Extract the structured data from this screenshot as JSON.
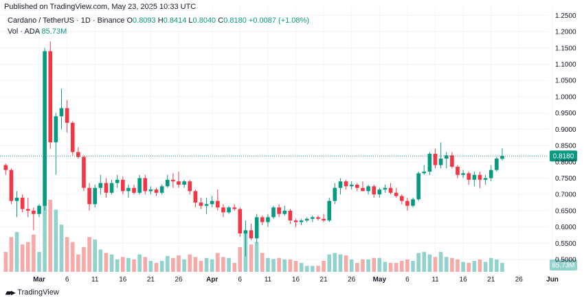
{
  "header": {
    "published": "Published on TradingView.com, May 23, 2025 10:33 UTC"
  },
  "legend": {
    "symbol": "Cardano / TetherUS · 1D · Binance",
    "o_label": "O",
    "o_value": "0.8093",
    "h_label": "H",
    "h_value": "0.8414",
    "l_label": "L",
    "l_value": "0.8040",
    "c_label": "C",
    "c_value": "0.8180",
    "change": "+0.0087 (+1.08%)",
    "vol_label": "Vol · ADA",
    "vol_value": "85.73M"
  },
  "footer": {
    "brand": "TradingView"
  },
  "colors": {
    "up": "#089981",
    "down": "#f23645",
    "up_vol": "#92d2cc",
    "down_vol": "#f7a9a7",
    "grid": "#f0f3fa"
  },
  "chart_data": {
    "type": "candlestick",
    "symbol": "ADA/USDT",
    "interval": "1D",
    "y_ticks": [
      "1.2500",
      "1.2000",
      "1.1500",
      "1.1000",
      "1.0500",
      "1.0000",
      "0.9500",
      "0.9000",
      "0.8500",
      "0.8000",
      "0.7500",
      "0.7000",
      "0.6500",
      "0.6000",
      "0.5500",
      "0.5000"
    ],
    "ylim": [
      0.46,
      1.255
    ],
    "x_ticks": [
      {
        "label": "Mar",
        "date": "2025-03-01",
        "bold": true
      },
      {
        "label": "6",
        "date": "2025-03-06"
      },
      {
        "label": "11",
        "date": "2025-03-11"
      },
      {
        "label": "16",
        "date": "2025-03-16"
      },
      {
        "label": "21",
        "date": "2025-03-21"
      },
      {
        "label": "26",
        "date": "2025-03-26"
      },
      {
        "label": "Apr",
        "date": "2025-04-01",
        "bold": true
      },
      {
        "label": "6",
        "date": "2025-04-06"
      },
      {
        "label": "11",
        "date": "2025-04-11"
      },
      {
        "label": "16",
        "date": "2025-04-16"
      },
      {
        "label": "21",
        "date": "2025-04-21"
      },
      {
        "label": "26",
        "date": "2025-04-26"
      },
      {
        "label": "May",
        "date": "2025-05-01",
        "bold": true
      },
      {
        "label": "6",
        "date": "2025-05-06"
      },
      {
        "label": "11",
        "date": "2025-05-11"
      },
      {
        "label": "16",
        "date": "2025-05-16"
      },
      {
        "label": "21",
        "date": "2025-05-21"
      },
      {
        "label": "26",
        "date": "2025-05-26"
      },
      {
        "label": "Jun",
        "date": "2025-06-01",
        "bold": true
      }
    ],
    "last_price": "0.8180",
    "last_volume": "85.73M",
    "volume_max": 145,
    "candles": [
      {
        "d": "2025-02-23",
        "o": 0.79,
        "h": 0.795,
        "l": 0.76,
        "c": 0.775,
        "v": 40
      },
      {
        "d": "2025-02-24",
        "o": 0.775,
        "h": 0.78,
        "l": 0.67,
        "c": 0.68,
        "v": 70
      },
      {
        "d": "2025-02-25",
        "o": 0.68,
        "h": 0.71,
        "l": 0.63,
        "c": 0.69,
        "v": 80
      },
      {
        "d": "2025-02-26",
        "o": 0.69,
        "h": 0.7,
        "l": 0.645,
        "c": 0.655,
        "v": 55
      },
      {
        "d": "2025-02-27",
        "o": 0.655,
        "h": 0.69,
        "l": 0.63,
        "c": 0.65,
        "v": 60
      },
      {
        "d": "2025-02-28",
        "o": 0.65,
        "h": 0.66,
        "l": 0.59,
        "c": 0.64,
        "v": 75
      },
      {
        "d": "2025-03-01",
        "o": 0.64,
        "h": 0.67,
        "l": 0.63,
        "c": 0.665,
        "v": 40
      },
      {
        "d": "2025-03-02",
        "o": 0.665,
        "h": 1.15,
        "l": 0.65,
        "c": 1.14,
        "v": 140
      },
      {
        "d": "2025-03-03",
        "o": 1.14,
        "h": 1.17,
        "l": 0.84,
        "c": 0.86,
        "v": 145
      },
      {
        "d": "2025-03-04",
        "o": 0.86,
        "h": 0.95,
        "l": 0.76,
        "c": 0.94,
        "v": 125
      },
      {
        "d": "2025-03-05",
        "o": 0.94,
        "h": 1.025,
        "l": 0.9,
        "c": 0.965,
        "v": 95
      },
      {
        "d": "2025-03-06",
        "o": 0.965,
        "h": 0.99,
        "l": 0.89,
        "c": 0.92,
        "v": 70
      },
      {
        "d": "2025-03-07",
        "o": 0.92,
        "h": 0.925,
        "l": 0.82,
        "c": 0.83,
        "v": 60
      },
      {
        "d": "2025-03-08",
        "o": 0.83,
        "h": 0.845,
        "l": 0.81,
        "c": 0.815,
        "v": 35
      },
      {
        "d": "2025-03-09",
        "o": 0.815,
        "h": 0.82,
        "l": 0.71,
        "c": 0.72,
        "v": 50
      },
      {
        "d": "2025-03-10",
        "o": 0.72,
        "h": 0.735,
        "l": 0.65,
        "c": 0.67,
        "v": 70
      },
      {
        "d": "2025-03-11",
        "o": 0.67,
        "h": 0.73,
        "l": 0.66,
        "c": 0.72,
        "v": 65
      },
      {
        "d": "2025-03-12",
        "o": 0.72,
        "h": 0.76,
        "l": 0.7,
        "c": 0.735,
        "v": 45
      },
      {
        "d": "2025-03-13",
        "o": 0.735,
        "h": 0.75,
        "l": 0.69,
        "c": 0.705,
        "v": 38
      },
      {
        "d": "2025-03-14",
        "o": 0.705,
        "h": 0.745,
        "l": 0.7,
        "c": 0.735,
        "v": 35
      },
      {
        "d": "2025-03-15",
        "o": 0.735,
        "h": 0.76,
        "l": 0.72,
        "c": 0.745,
        "v": 25
      },
      {
        "d": "2025-03-16",
        "o": 0.745,
        "h": 0.755,
        "l": 0.7,
        "c": 0.71,
        "v": 30
      },
      {
        "d": "2025-03-17",
        "o": 0.71,
        "h": 0.73,
        "l": 0.69,
        "c": 0.72,
        "v": 28
      },
      {
        "d": "2025-03-18",
        "o": 0.72,
        "h": 0.73,
        "l": 0.7,
        "c": 0.705,
        "v": 25
      },
      {
        "d": "2025-03-19",
        "o": 0.705,
        "h": 0.76,
        "l": 0.7,
        "c": 0.75,
        "v": 35
      },
      {
        "d": "2025-03-20",
        "o": 0.75,
        "h": 0.76,
        "l": 0.7,
        "c": 0.71,
        "v": 30
      },
      {
        "d": "2025-03-21",
        "o": 0.71,
        "h": 0.725,
        "l": 0.7,
        "c": 0.715,
        "v": 22
      },
      {
        "d": "2025-03-22",
        "o": 0.715,
        "h": 0.72,
        "l": 0.695,
        "c": 0.705,
        "v": 18
      },
      {
        "d": "2025-03-23",
        "o": 0.705,
        "h": 0.73,
        "l": 0.7,
        "c": 0.725,
        "v": 22
      },
      {
        "d": "2025-03-24",
        "o": 0.725,
        "h": 0.76,
        "l": 0.72,
        "c": 0.745,
        "v": 32
      },
      {
        "d": "2025-03-25",
        "o": 0.745,
        "h": 0.765,
        "l": 0.72,
        "c": 0.74,
        "v": 28
      },
      {
        "d": "2025-03-26",
        "o": 0.74,
        "h": 0.77,
        "l": 0.72,
        "c": 0.73,
        "v": 33
      },
      {
        "d": "2025-03-27",
        "o": 0.73,
        "h": 0.745,
        "l": 0.72,
        "c": 0.74,
        "v": 25
      },
      {
        "d": "2025-03-28",
        "o": 0.74,
        "h": 0.745,
        "l": 0.7,
        "c": 0.71,
        "v": 35
      },
      {
        "d": "2025-03-29",
        "o": 0.71,
        "h": 0.715,
        "l": 0.66,
        "c": 0.675,
        "v": 30
      },
      {
        "d": "2025-03-30",
        "o": 0.675,
        "h": 0.69,
        "l": 0.655,
        "c": 0.665,
        "v": 22
      },
      {
        "d": "2025-03-31",
        "o": 0.665,
        "h": 0.69,
        "l": 0.64,
        "c": 0.67,
        "v": 28
      },
      {
        "d": "2025-04-01",
        "o": 0.67,
        "h": 0.695,
        "l": 0.66,
        "c": 0.68,
        "v": 25
      },
      {
        "d": "2025-04-02",
        "o": 0.68,
        "h": 0.715,
        "l": 0.65,
        "c": 0.66,
        "v": 38
      },
      {
        "d": "2025-04-03",
        "o": 0.66,
        "h": 0.67,
        "l": 0.63,
        "c": 0.645,
        "v": 30
      },
      {
        "d": "2025-04-04",
        "o": 0.645,
        "h": 0.665,
        "l": 0.64,
        "c": 0.66,
        "v": 28
      },
      {
        "d": "2025-04-05",
        "o": 0.66,
        "h": 0.67,
        "l": 0.65,
        "c": 0.655,
        "v": 18
      },
      {
        "d": "2025-04-06",
        "o": 0.655,
        "h": 0.66,
        "l": 0.57,
        "c": 0.58,
        "v": 50
      },
      {
        "d": "2025-04-07",
        "o": 0.58,
        "h": 0.62,
        "l": 0.51,
        "c": 0.59,
        "v": 80
      },
      {
        "d": "2025-04-08",
        "o": 0.59,
        "h": 0.61,
        "l": 0.56,
        "c": 0.565,
        "v": 55
      },
      {
        "d": "2025-04-09",
        "o": 0.565,
        "h": 0.64,
        "l": 0.55,
        "c": 0.63,
        "v": 60
      },
      {
        "d": "2025-04-10",
        "o": 0.63,
        "h": 0.635,
        "l": 0.605,
        "c": 0.615,
        "v": 38
      },
      {
        "d": "2025-04-11",
        "o": 0.615,
        "h": 0.64,
        "l": 0.6,
        "c": 0.63,
        "v": 28
      },
      {
        "d": "2025-04-12",
        "o": 0.63,
        "h": 0.665,
        "l": 0.625,
        "c": 0.66,
        "v": 26
      },
      {
        "d": "2025-04-13",
        "o": 0.66,
        "h": 0.67,
        "l": 0.63,
        "c": 0.64,
        "v": 28
      },
      {
        "d": "2025-04-14",
        "o": 0.64,
        "h": 0.665,
        "l": 0.635,
        "c": 0.65,
        "v": 25
      },
      {
        "d": "2025-04-15",
        "o": 0.65,
        "h": 0.655,
        "l": 0.61,
        "c": 0.62,
        "v": 25
      },
      {
        "d": "2025-04-16",
        "o": 0.62,
        "h": 0.625,
        "l": 0.6,
        "c": 0.615,
        "v": 22
      },
      {
        "d": "2025-04-17",
        "o": 0.615,
        "h": 0.625,
        "l": 0.605,
        "c": 0.62,
        "v": 18
      },
      {
        "d": "2025-04-18",
        "o": 0.62,
        "h": 0.63,
        "l": 0.615,
        "c": 0.625,
        "v": 12
      },
      {
        "d": "2025-04-19",
        "o": 0.625,
        "h": 0.635,
        "l": 0.615,
        "c": 0.63,
        "v": 12
      },
      {
        "d": "2025-04-20",
        "o": 0.63,
        "h": 0.635,
        "l": 0.62,
        "c": 0.625,
        "v": 12
      },
      {
        "d": "2025-04-21",
        "o": 0.625,
        "h": 0.64,
        "l": 0.615,
        "c": 0.62,
        "v": 22
      },
      {
        "d": "2025-04-22",
        "o": 0.62,
        "h": 0.69,
        "l": 0.615,
        "c": 0.68,
        "v": 35
      },
      {
        "d": "2025-04-23",
        "o": 0.68,
        "h": 0.735,
        "l": 0.67,
        "c": 0.72,
        "v": 38
      },
      {
        "d": "2025-04-24",
        "o": 0.72,
        "h": 0.75,
        "l": 0.7,
        "c": 0.74,
        "v": 35
      },
      {
        "d": "2025-04-25",
        "o": 0.74,
        "h": 0.745,
        "l": 0.715,
        "c": 0.725,
        "v": 33
      },
      {
        "d": "2025-04-26",
        "o": 0.725,
        "h": 0.74,
        "l": 0.715,
        "c": 0.73,
        "v": 25
      },
      {
        "d": "2025-04-27",
        "o": 0.73,
        "h": 0.735,
        "l": 0.71,
        "c": 0.72,
        "v": 18
      },
      {
        "d": "2025-04-28",
        "o": 0.72,
        "h": 0.74,
        "l": 0.71,
        "c": 0.71,
        "v": 25
      },
      {
        "d": "2025-04-29",
        "o": 0.71,
        "h": 0.73,
        "l": 0.7,
        "c": 0.725,
        "v": 25
      },
      {
        "d": "2025-04-30",
        "o": 0.725,
        "h": 0.73,
        "l": 0.69,
        "c": 0.7,
        "v": 28
      },
      {
        "d": "2025-05-01",
        "o": 0.7,
        "h": 0.72,
        "l": 0.69,
        "c": 0.715,
        "v": 28
      },
      {
        "d": "2025-05-02",
        "o": 0.715,
        "h": 0.73,
        "l": 0.705,
        "c": 0.72,
        "v": 20
      },
      {
        "d": "2025-05-03",
        "o": 0.72,
        "h": 0.735,
        "l": 0.7,
        "c": 0.705,
        "v": 18
      },
      {
        "d": "2025-05-04",
        "o": 0.705,
        "h": 0.72,
        "l": 0.69,
        "c": 0.695,
        "v": 18
      },
      {
        "d": "2025-05-05",
        "o": 0.695,
        "h": 0.7,
        "l": 0.67,
        "c": 0.68,
        "v": 22
      },
      {
        "d": "2025-05-06",
        "o": 0.68,
        "h": 0.69,
        "l": 0.65,
        "c": 0.665,
        "v": 25
      },
      {
        "d": "2025-05-07",
        "o": 0.665,
        "h": 0.69,
        "l": 0.66,
        "c": 0.685,
        "v": 22
      },
      {
        "d": "2025-05-08",
        "o": 0.685,
        "h": 0.77,
        "l": 0.68,
        "c": 0.765,
        "v": 38
      },
      {
        "d": "2025-05-09",
        "o": 0.765,
        "h": 0.79,
        "l": 0.76,
        "c": 0.77,
        "v": 40
      },
      {
        "d": "2025-05-10",
        "o": 0.77,
        "h": 0.83,
        "l": 0.76,
        "c": 0.825,
        "v": 35
      },
      {
        "d": "2025-05-11",
        "o": 0.825,
        "h": 0.84,
        "l": 0.78,
        "c": 0.79,
        "v": 30
      },
      {
        "d": "2025-05-12",
        "o": 0.79,
        "h": 0.86,
        "l": 0.78,
        "c": 0.81,
        "v": 40
      },
      {
        "d": "2025-05-13",
        "o": 0.81,
        "h": 0.83,
        "l": 0.78,
        "c": 0.82,
        "v": 30
      },
      {
        "d": "2025-05-14",
        "o": 0.82,
        "h": 0.83,
        "l": 0.78,
        "c": 0.785,
        "v": 28
      },
      {
        "d": "2025-05-15",
        "o": 0.785,
        "h": 0.79,
        "l": 0.75,
        "c": 0.76,
        "v": 25
      },
      {
        "d": "2025-05-16",
        "o": 0.76,
        "h": 0.775,
        "l": 0.75,
        "c": 0.765,
        "v": 20
      },
      {
        "d": "2025-05-17",
        "o": 0.765,
        "h": 0.77,
        "l": 0.73,
        "c": 0.745,
        "v": 18
      },
      {
        "d": "2025-05-18",
        "o": 0.745,
        "h": 0.77,
        "l": 0.725,
        "c": 0.76,
        "v": 22
      },
      {
        "d": "2025-05-19",
        "o": 0.76,
        "h": 0.77,
        "l": 0.72,
        "c": 0.745,
        "v": 25
      },
      {
        "d": "2025-05-20",
        "o": 0.745,
        "h": 0.76,
        "l": 0.73,
        "c": 0.75,
        "v": 20
      },
      {
        "d": "2025-05-21",
        "o": 0.75,
        "h": 0.79,
        "l": 0.74,
        "c": 0.775,
        "v": 28
      },
      {
        "d": "2025-05-22",
        "o": 0.775,
        "h": 0.815,
        "l": 0.77,
        "c": 0.81,
        "v": 25
      },
      {
        "d": "2025-05-23",
        "o": 0.8093,
        "h": 0.8414,
        "l": 0.804,
        "c": 0.818,
        "v": 18
      }
    ]
  }
}
